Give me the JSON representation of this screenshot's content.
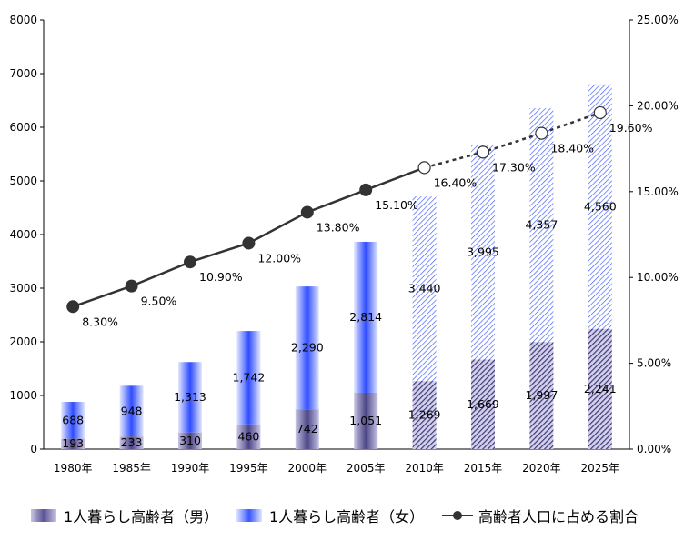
{
  "chart_data": {
    "type": "bar",
    "categories": [
      "1980年",
      "1985年",
      "1990年",
      "1995年",
      "2000年",
      "2005年",
      "2010年",
      "2015年",
      "2020年",
      "2025年"
    ],
    "series": [
      {
        "name": "1人暮らし高齢者（男）",
        "values": [
          193,
          233,
          310,
          460,
          742,
          1051,
          1269,
          1669,
          1997,
          2241
        ],
        "labels": [
          "193",
          "233",
          "310",
          "460",
          "742",
          "1,051",
          "1,269",
          "1,669",
          "1,997",
          "2,241"
        ],
        "color": "#5a5494"
      },
      {
        "name": "1人暮らし高齢者（女）",
        "values": [
          688,
          948,
          1313,
          1742,
          2290,
          2814,
          3440,
          3995,
          4357,
          4560
        ],
        "labels": [
          "688",
          "948",
          "1,313",
          "1,742",
          "2,290",
          "2,814",
          "3,440",
          "3,995",
          "4,357",
          "4,560"
        ],
        "color": "#3a57ff"
      },
      {
        "name": "高齢者人口に占める割合",
        "type": "line",
        "axis": "right",
        "values": [
          8.3,
          9.5,
          10.9,
          12.0,
          13.8,
          15.1,
          16.4,
          17.3,
          18.4,
          19.6
        ],
        "labels": [
          "8.30%",
          "9.50%",
          "10.90%",
          "12.00%",
          "13.80%",
          "15.10%",
          "16.40%",
          "17.30%",
          "18.40%",
          "19.60%"
        ],
        "color": "#333333"
      }
    ],
    "projected_from_index": 6,
    "y_left": {
      "min": 0,
      "max": 8000,
      "ticks": [
        "0",
        "1000",
        "2000",
        "3000",
        "4000",
        "5000",
        "6000",
        "7000",
        "8000"
      ]
    },
    "y_right": {
      "min": 0,
      "max": 25,
      "ticks": [
        "0.00%",
        "5.00%",
        "10.00%",
        "15.00%",
        "20.00%",
        "25.00%"
      ]
    },
    "legend_position": "bottom",
    "grid": false
  },
  "legend": {
    "male": "1人暮らし高齢者（男）",
    "female": "1人暮らし高齢者（女）",
    "ratio": "高齢者人口に占める割合"
  }
}
